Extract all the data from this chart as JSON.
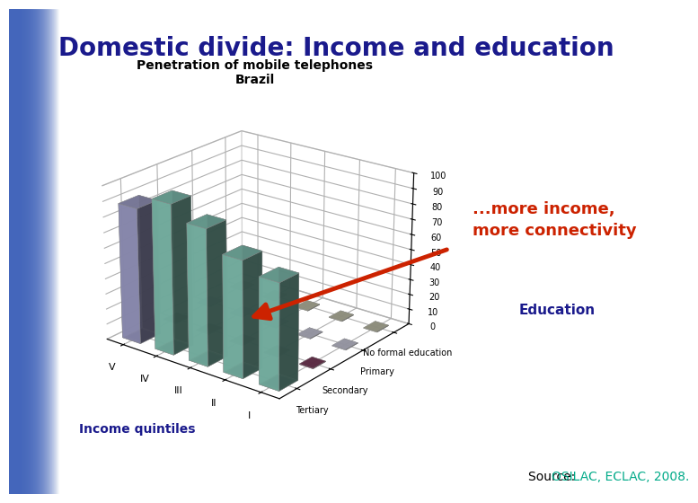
{
  "title": "Domestic divide: Income and education",
  "chart_title_line1": "Penetration of mobile telephones",
  "chart_title_line2": "Brazil",
  "annotation": "...more income,\nmore connectivity",
  "source_prefix": "Source: ",
  "source_body": "OSILAC, ECLAC, 2008.",
  "education_label": "Education",
  "income_label": "Income quintiles",
  "income_quintiles": [
    "V",
    "IV",
    "III",
    "II",
    "I"
  ],
  "education_levels": [
    "Tertiary",
    "Secondary",
    "Primary",
    "No formal education"
  ],
  "tertiary_values": [
    88,
    97,
    88,
    75,
    68
  ],
  "floor_tile_colors_by_edu": [
    "#9090b8",
    "#7a3a5a",
    "#c8c8d8",
    "#c0c0a8"
  ],
  "tall_bar_color_V": "#9898c0",
  "tall_bar_color_rest": "#7fbfb0",
  "title_color": "#1a1a8c",
  "annotation_color": "#cc2200",
  "source_color_prefix": "#000000",
  "source_color_body": "#00aa88",
  "education_label_color": "#1a1a8c",
  "income_label_color": "#1a1a8c",
  "chart_title_color": "#000000",
  "bg_blue": "#4466bb",
  "bg_white": "#ffffff",
  "ylim_max": 100,
  "title_fontsize": 20,
  "chart_title_fontsize": 10,
  "annotation_fontsize": 13,
  "source_fontsize": 10,
  "tick_fontsize": 7,
  "axis_tick_fontsize": 8
}
